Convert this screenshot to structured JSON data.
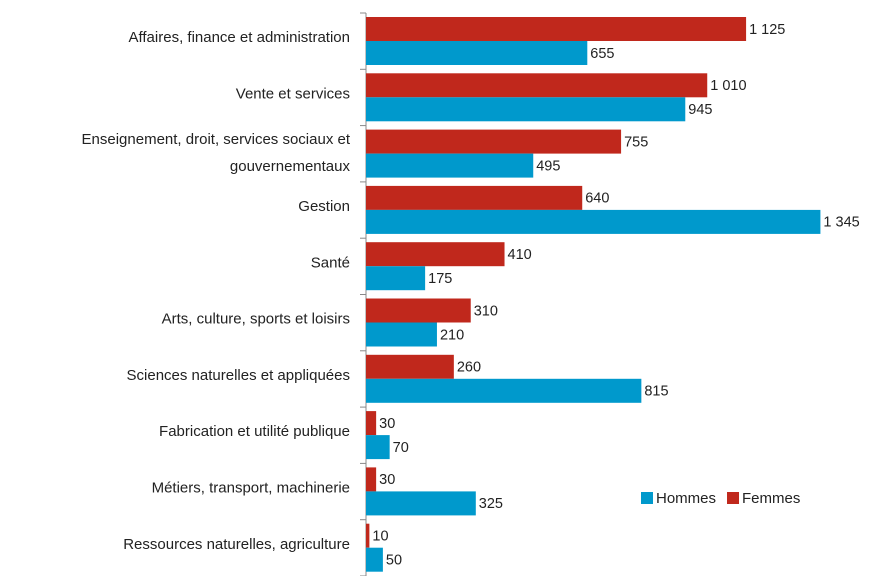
{
  "chart_data": {
    "type": "bar",
    "orientation": "horizontal",
    "categories": [
      "Affaires, finance et administration",
      "Vente et services",
      [
        "Enseignement, droit, services sociaux et",
        "gouvernementaux"
      ],
      "Gestion",
      "Santé",
      "Arts, culture, sports et loisirs",
      "Sciences naturelles et appliquées",
      "Fabrication et utilité publique",
      "Métiers, transport, machinerie",
      "Ressources naturelles, agriculture"
    ],
    "series": [
      {
        "name": "Hommes",
        "color": "#0099cc",
        "values": [
          655,
          945,
          495,
          1345,
          175,
          210,
          815,
          70,
          325,
          50
        ],
        "value_labels": [
          "655",
          "945",
          "495",
          "1 345",
          "175",
          "210",
          "815",
          "70",
          "325",
          "50"
        ]
      },
      {
        "name": "Femmes",
        "color": "#c0281c",
        "values": [
          1125,
          1010,
          755,
          640,
          410,
          310,
          260,
          30,
          30,
          10
        ],
        "value_labels": [
          "1 125",
          "1 010",
          "755",
          "640",
          "410",
          "310",
          "260",
          "30",
          "30",
          "10"
        ]
      }
    ],
    "xlim": [
      0,
      1400
    ],
    "legend": "lower right"
  }
}
